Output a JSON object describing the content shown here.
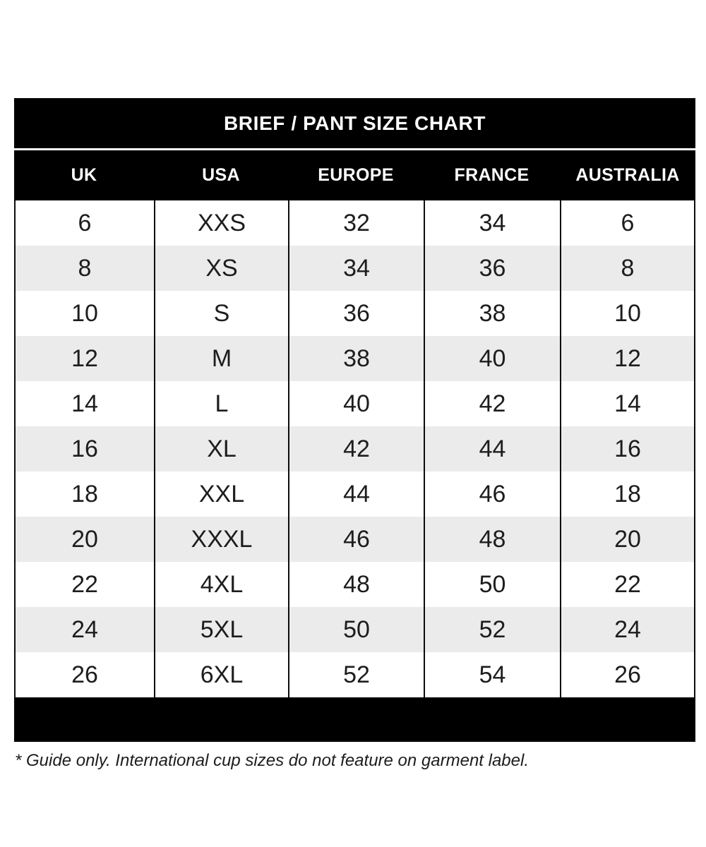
{
  "chart_data": {
    "type": "table",
    "title": "BRIEF / PANT SIZE CHART",
    "columns": [
      "UK",
      "USA",
      "EUROPE",
      "FRANCE",
      "AUSTRALIA"
    ],
    "rows": [
      [
        "6",
        "XXS",
        "32",
        "34",
        "6"
      ],
      [
        "8",
        "XS",
        "34",
        "36",
        "8"
      ],
      [
        "10",
        "S",
        "36",
        "38",
        "10"
      ],
      [
        "12",
        "M",
        "38",
        "40",
        "12"
      ],
      [
        "14",
        "L",
        "40",
        "42",
        "14"
      ],
      [
        "16",
        "XL",
        "42",
        "44",
        "16"
      ],
      [
        "18",
        "XXL",
        "44",
        "46",
        "18"
      ],
      [
        "20",
        "XXXL",
        "46",
        "48",
        "20"
      ],
      [
        "22",
        "4XL",
        "48",
        "50",
        "22"
      ],
      [
        "24",
        "5XL",
        "50",
        "52",
        "24"
      ],
      [
        "26",
        "6XL",
        "52",
        "54",
        "26"
      ]
    ],
    "layout": {
      "stripe_pattern": "odd rows white, even rows gray",
      "header_position": "top"
    }
  },
  "footnote": "* Guide only. International cup sizes do not feature on garment label.",
  "colors": {
    "bar_background": "#000000",
    "bar_text": "#ffffff",
    "row_stripe": "#ebebeb",
    "body_text": "#1d1d1d",
    "grid_border": "#0d0d0d"
  }
}
